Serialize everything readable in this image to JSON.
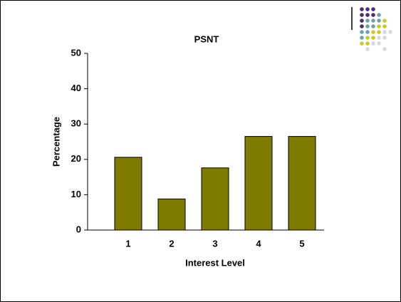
{
  "chart_data": {
    "type": "bar",
    "title": "PSNT",
    "x_label": "Interest Level",
    "y_label": "Percentage",
    "categories": [
      "1",
      "2",
      "3",
      "4",
      "5"
    ],
    "values": [
      20.6,
      8.8,
      17.6,
      26.5,
      26.5
    ],
    "color": "#7f7a00",
    "ylim": [
      0,
      50
    ],
    "yticks": [
      0,
      10,
      20,
      30,
      40,
      50
    ],
    "grid": false
  }
}
